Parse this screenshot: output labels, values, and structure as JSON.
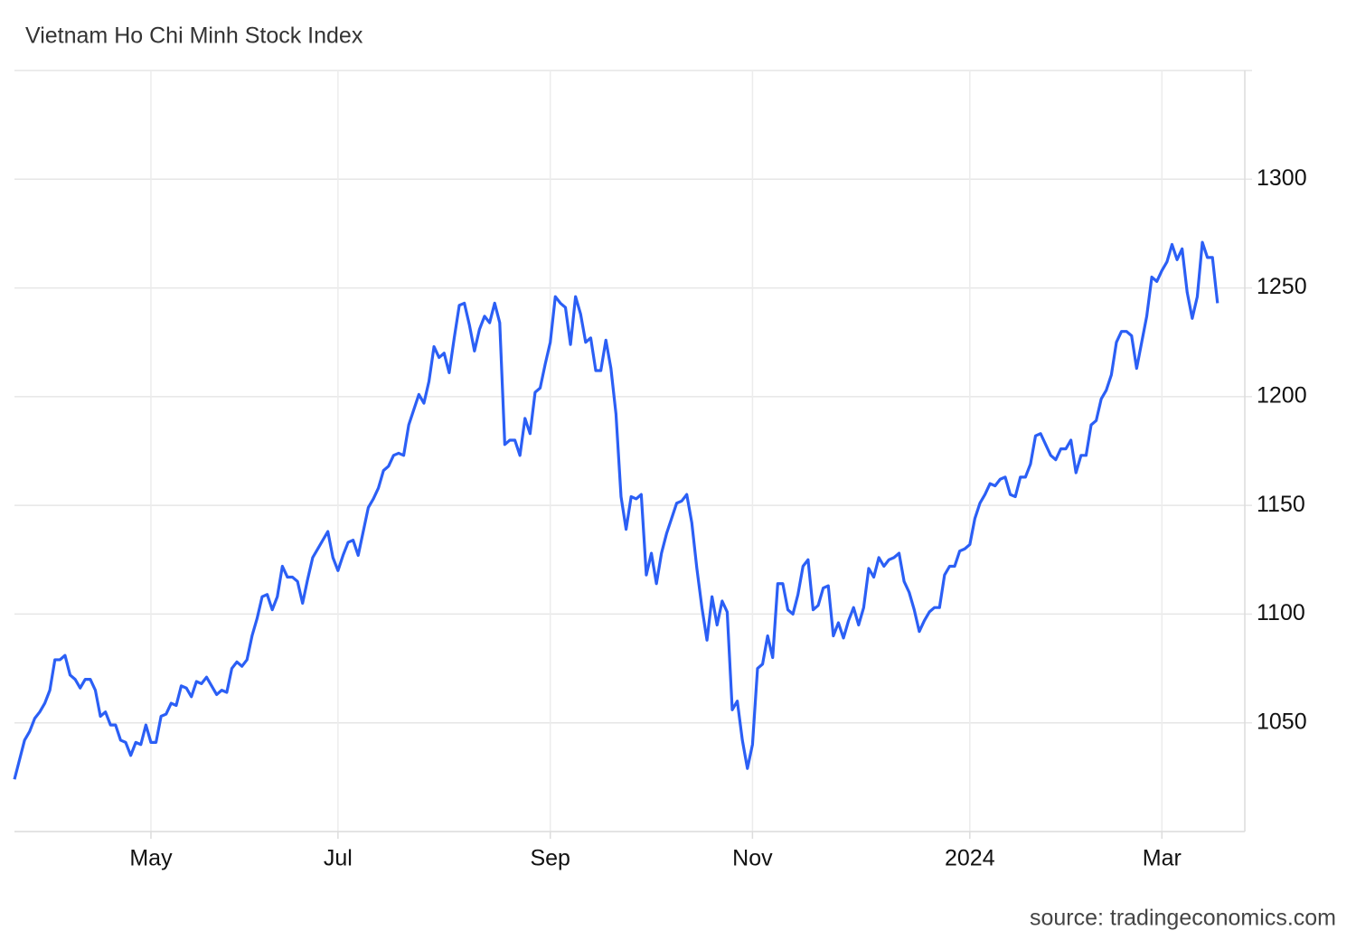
{
  "chart_data": {
    "type": "line",
    "title": "Vietnam Ho Chi Minh Stock Index",
    "source": "source: tradingeconomics.com",
    "series": [
      {
        "name": "Vietnam Ho Chi Minh Stock Index",
        "color": "#2b5ff5",
        "values": [
          1024,
          1033,
          1042,
          1046,
          1052,
          1055,
          1059,
          1065,
          1079,
          1079,
          1081,
          1072,
          1070,
          1066,
          1070,
          1070,
          1065,
          1053,
          1055,
          1049,
          1049,
          1042,
          1041,
          1035,
          1041,
          1040,
          1049,
          1041,
          1041,
          1053,
          1054,
          1059,
          1058,
          1067,
          1066,
          1062,
          1069,
          1068,
          1071,
          1067,
          1063,
          1065,
          1064,
          1075,
          1078,
          1076,
          1079,
          1090,
          1098,
          1108,
          1109,
          1102,
          1108,
          1122,
          1117,
          1117,
          1115,
          1105,
          1116,
          1126,
          1130,
          1134,
          1138,
          1126,
          1120,
          1127,
          1133,
          1134,
          1127,
          1138,
          1149,
          1153,
          1158,
          1166,
          1168,
          1173,
          1174,
          1173,
          1187,
          1194,
          1201,
          1197,
          1207,
          1223,
          1218,
          1220,
          1211,
          1227,
          1242,
          1243,
          1233,
          1221,
          1231,
          1237,
          1234,
          1243,
          1234,
          1178,
          1180,
          1180,
          1173,
          1190,
          1183,
          1202,
          1204,
          1215,
          1225,
          1246,
          1243,
          1241,
          1224,
          1246,
          1238,
          1225,
          1227,
          1212,
          1212,
          1226,
          1213,
          1192,
          1154,
          1139,
          1154,
          1153,
          1155,
          1118,
          1128,
          1114,
          1128,
          1137,
          1144,
          1151,
          1152,
          1155,
          1142,
          1121,
          1103,
          1088,
          1108,
          1095,
          1106,
          1101,
          1056,
          1060,
          1042,
          1029,
          1040,
          1075,
          1077,
          1090,
          1080,
          1114,
          1114,
          1102,
          1100,
          1109,
          1122,
          1125,
          1102,
          1104,
          1112,
          1113,
          1090,
          1096,
          1089,
          1097,
          1103,
          1095,
          1103,
          1121,
          1117,
          1126,
          1122,
          1125,
          1126,
          1128,
          1115,
          1110,
          1102,
          1092,
          1097,
          1101,
          1103,
          1103,
          1118,
          1122,
          1122,
          1129,
          1130,
          1132,
          1144,
          1151,
          1155,
          1160,
          1159,
          1162,
          1163,
          1155,
          1154,
          1163,
          1163,
          1169,
          1182,
          1183,
          1178,
          1173,
          1171,
          1176,
          1176,
          1180,
          1165,
          1173,
          1173,
          1187,
          1189,
          1199,
          1203,
          1210,
          1225,
          1230,
          1230,
          1228,
          1213,
          1225,
          1237,
          1255,
          1253,
          1258,
          1262,
          1270,
          1263,
          1268,
          1248,
          1236,
          1246,
          1271,
          1264,
          1264,
          1243
        ]
      }
    ],
    "xlim": [
      0,
      243.4
    ],
    "xticks": [
      {
        "value": 27,
        "label": "May"
      },
      {
        "value": 64,
        "label": "Jul"
      },
      {
        "value": 106,
        "label": "Sep"
      },
      {
        "value": 146,
        "label": "Nov"
      },
      {
        "value": 189,
        "label": "2024"
      },
      {
        "value": 227,
        "label": "Mar"
      }
    ],
    "ylim": [
      1000,
      1350
    ],
    "yticks": [
      1050,
      1100,
      1150,
      1200,
      1250,
      1300
    ],
    "grid": true,
    "y_axis_side": "right"
  }
}
